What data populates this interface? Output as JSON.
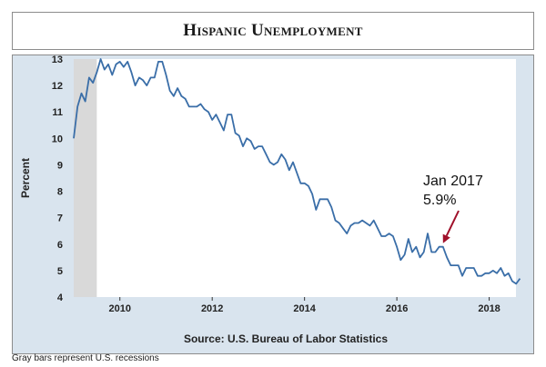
{
  "title": "Hispanic Unemployment",
  "source": "Source: U.S. Bureau of Labor Statistics",
  "footnote": "Gray bars represent U.S. recessions",
  "colors": {
    "line": "#3a6ea8",
    "recession": "#d9d9d9",
    "panel": "#d9e4ee",
    "plot": "#ffffff",
    "arrow": "#a0102a"
  },
  "chart_data": {
    "type": "line",
    "title": "Hispanic Unemployment",
    "xlabel": "",
    "ylabel": "Percent",
    "xlim": [
      2009.0,
      2018.58
    ],
    "ylim": [
      4,
      13
    ],
    "x_ticks": [
      2010,
      2012,
      2014,
      2016,
      2018
    ],
    "y_ticks": [
      4,
      5,
      6,
      7,
      8,
      9,
      10,
      11,
      12,
      13
    ],
    "grid": false,
    "recessions": [
      [
        2009.0,
        2009.5
      ]
    ],
    "annotation": {
      "x": 2017.0,
      "y": 5.9,
      "label_line1": "Jan 2017",
      "label_line2": "5.9%"
    },
    "series": [
      {
        "values": [
          [
            2009.0,
            10.0
          ],
          [
            2009.083,
            11.2
          ],
          [
            2009.167,
            11.7
          ],
          [
            2009.25,
            11.4
          ],
          [
            2009.333,
            12.3
          ],
          [
            2009.417,
            12.1
          ],
          [
            2009.5,
            12.5
          ],
          [
            2009.583,
            13.0
          ],
          [
            2009.667,
            12.6
          ],
          [
            2009.75,
            12.8
          ],
          [
            2009.833,
            12.4
          ],
          [
            2009.917,
            12.8
          ],
          [
            2010.0,
            12.9
          ],
          [
            2010.083,
            12.7
          ],
          [
            2010.167,
            12.9
          ],
          [
            2010.25,
            12.5
          ],
          [
            2010.333,
            12.0
          ],
          [
            2010.417,
            12.3
          ],
          [
            2010.5,
            12.2
          ],
          [
            2010.583,
            12.0
          ],
          [
            2010.667,
            12.3
          ],
          [
            2010.75,
            12.3
          ],
          [
            2010.833,
            12.9
          ],
          [
            2010.917,
            12.9
          ],
          [
            2011.0,
            12.4
          ],
          [
            2011.083,
            11.8
          ],
          [
            2011.167,
            11.6
          ],
          [
            2011.25,
            11.9
          ],
          [
            2011.333,
            11.6
          ],
          [
            2011.417,
            11.5
          ],
          [
            2011.5,
            11.2
          ],
          [
            2011.583,
            11.2
          ],
          [
            2011.667,
            11.2
          ],
          [
            2011.75,
            11.3
          ],
          [
            2011.833,
            11.1
          ],
          [
            2011.917,
            11.0
          ],
          [
            2012.0,
            10.7
          ],
          [
            2012.083,
            10.9
          ],
          [
            2012.167,
            10.6
          ],
          [
            2012.25,
            10.3
          ],
          [
            2012.333,
            10.9
          ],
          [
            2012.417,
            10.9
          ],
          [
            2012.5,
            10.2
          ],
          [
            2012.583,
            10.1
          ],
          [
            2012.667,
            9.7
          ],
          [
            2012.75,
            10.0
          ],
          [
            2012.833,
            9.9
          ],
          [
            2012.917,
            9.6
          ],
          [
            2013.0,
            9.7
          ],
          [
            2013.083,
            9.7
          ],
          [
            2013.167,
            9.4
          ],
          [
            2013.25,
            9.1
          ],
          [
            2013.333,
            9.0
          ],
          [
            2013.417,
            9.1
          ],
          [
            2013.5,
            9.4
          ],
          [
            2013.583,
            9.2
          ],
          [
            2013.667,
            8.8
          ],
          [
            2013.75,
            9.1
          ],
          [
            2013.833,
            8.7
          ],
          [
            2013.917,
            8.3
          ],
          [
            2014.0,
            8.3
          ],
          [
            2014.083,
            8.2
          ],
          [
            2014.167,
            7.9
          ],
          [
            2014.25,
            7.3
          ],
          [
            2014.333,
            7.7
          ],
          [
            2014.417,
            7.7
          ],
          [
            2014.5,
            7.7
          ],
          [
            2014.583,
            7.4
          ],
          [
            2014.667,
            6.9
          ],
          [
            2014.75,
            6.8
          ],
          [
            2014.833,
            6.6
          ],
          [
            2014.917,
            6.4
          ],
          [
            2015.0,
            6.7
          ],
          [
            2015.083,
            6.8
          ],
          [
            2015.167,
            6.8
          ],
          [
            2015.25,
            6.9
          ],
          [
            2015.333,
            6.8
          ],
          [
            2015.417,
            6.7
          ],
          [
            2015.5,
            6.9
          ],
          [
            2015.583,
            6.6
          ],
          [
            2015.667,
            6.3
          ],
          [
            2015.75,
            6.3
          ],
          [
            2015.833,
            6.4
          ],
          [
            2015.917,
            6.3
          ],
          [
            2016.0,
            5.9
          ],
          [
            2016.083,
            5.4
          ],
          [
            2016.167,
            5.6
          ],
          [
            2016.25,
            6.2
          ],
          [
            2016.333,
            5.7
          ],
          [
            2016.417,
            5.9
          ],
          [
            2016.5,
            5.5
          ],
          [
            2016.583,
            5.7
          ],
          [
            2016.667,
            6.4
          ],
          [
            2016.75,
            5.7
          ],
          [
            2016.833,
            5.7
          ],
          [
            2016.917,
            5.9
          ],
          [
            2017.0,
            5.9
          ],
          [
            2017.083,
            5.5
          ],
          [
            2017.167,
            5.2
          ],
          [
            2017.25,
            5.2
          ],
          [
            2017.333,
            5.2
          ],
          [
            2017.417,
            4.8
          ],
          [
            2017.5,
            5.1
          ],
          [
            2017.583,
            5.1
          ],
          [
            2017.667,
            5.1
          ],
          [
            2017.75,
            4.8
          ],
          [
            2017.833,
            4.8
          ],
          [
            2017.917,
            4.9
          ],
          [
            2018.0,
            4.9
          ],
          [
            2018.083,
            5.0
          ],
          [
            2018.167,
            4.9
          ],
          [
            2018.25,
            5.1
          ],
          [
            2018.333,
            4.8
          ],
          [
            2018.417,
            4.9
          ],
          [
            2018.5,
            4.6
          ],
          [
            2018.583,
            4.5
          ],
          [
            2018.667,
            4.7
          ]
        ]
      }
    ]
  }
}
